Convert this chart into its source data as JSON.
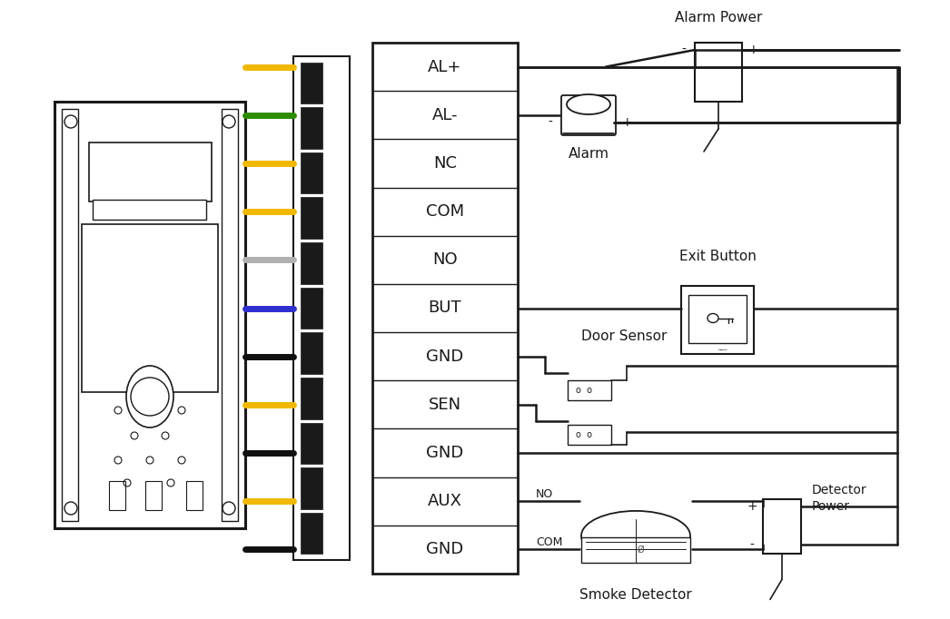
{
  "bg_color": "#ffffff",
  "terminal_labels": [
    "AL+",
    "AL-",
    "NC",
    "COM",
    "NO",
    "BUT",
    "GND",
    "SEN",
    "GND",
    "AUX",
    "GND"
  ],
  "wire_colors": [
    "#f0b800",
    "#2e8b00",
    "#f0b800",
    "#f0b800",
    "#b0b0b0",
    "#3030d0",
    "#111111",
    "#f0b800",
    "#111111",
    "#f0b800",
    "#111111"
  ],
  "label_fontsize": 13,
  "device_label_fontsize": 11,
  "black": "#1a1a1a",
  "gray": "#888888",
  "light_gray": "#dddddd"
}
